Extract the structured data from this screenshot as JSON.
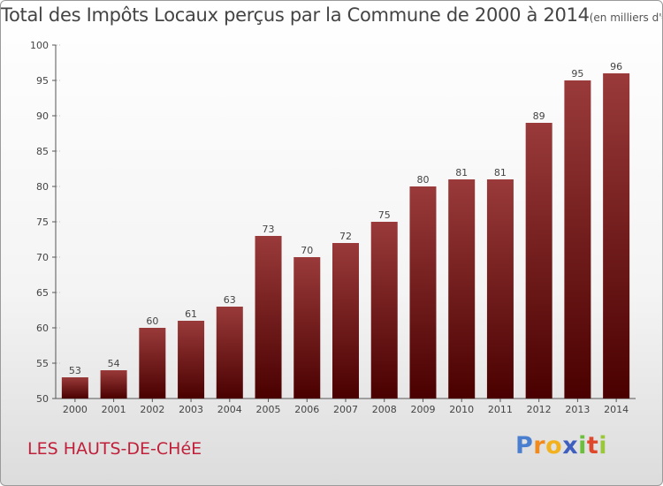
{
  "title": {
    "main": "Total des Impôts Locaux perçus par la Commune de 2000 à 2014",
    "unit": "(en milliers d'€)"
  },
  "commune": "LES HAUTS-DE-CHéE",
  "logo": {
    "text": "Proxiti",
    "letters": [
      {
        "ch": "P",
        "color": "#4a7fd0"
      },
      {
        "ch": "r",
        "color": "#f08a1e"
      },
      {
        "ch": "o",
        "color": "#f2b21f"
      },
      {
        "ch": "x",
        "color": "#3f5fbf"
      },
      {
        "ch": "i",
        "color": "#6cbf3a"
      },
      {
        "ch": "t",
        "color": "#e0482b"
      },
      {
        "ch": "i",
        "color": "#9ac83a"
      }
    ]
  },
  "colors": {
    "bar_top": "#9a3a3a",
    "bar_bottom": "#4a0000",
    "axis": "#555555",
    "grid_dash": "#bbbbbb",
    "text": "#444444"
  },
  "chart_data": {
    "type": "bar",
    "title": "Total des Impôts Locaux perçus par la Commune de 2000 à 2014",
    "xlabel": "",
    "ylabel": "",
    "categories": [
      "2000",
      "2001",
      "2002",
      "2003",
      "2004",
      "2005",
      "2006",
      "2007",
      "2008",
      "2009",
      "2010",
      "2011",
      "2012",
      "2013",
      "2014"
    ],
    "values": [
      53,
      54,
      60,
      61,
      63,
      73,
      70,
      72,
      75,
      80,
      81,
      81,
      89,
      95,
      96
    ],
    "ylim": [
      50,
      100
    ],
    "yticks": [
      50,
      55,
      60,
      65,
      70,
      75,
      80,
      85,
      90,
      95,
      100
    ],
    "data_labels": [
      "53",
      "54",
      "60",
      "61",
      "63",
      "73",
      "70",
      "72",
      "75",
      "80",
      "81",
      "81",
      "89",
      "95",
      "96"
    ]
  }
}
